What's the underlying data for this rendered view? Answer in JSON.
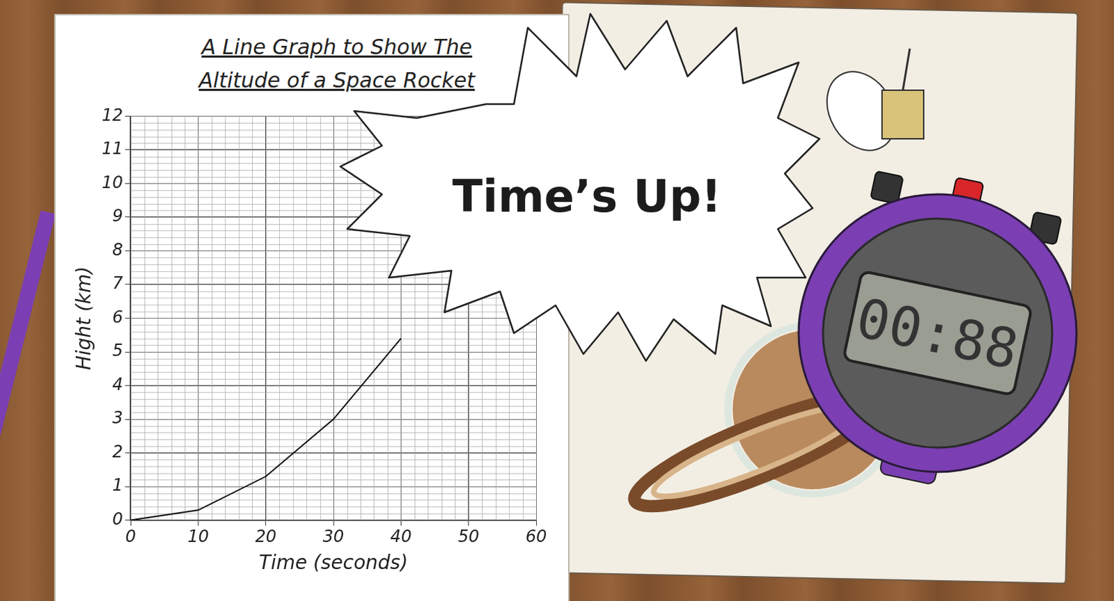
{
  "chart_data": {
    "type": "line",
    "title": "A Line Graph to Show The Altitude of a Space Rocket",
    "x_label": "Time (seconds)",
    "y_label": "Hight (km)",
    "x": [
      0,
      10,
      20,
      30,
      40
    ],
    "values": [
      0,
      0.3,
      1.3,
      3,
      5.4
    ],
    "color": "#111111",
    "line_style": "solid",
    "xlim": [
      0,
      60
    ],
    "xticks": [
      0,
      10,
      20,
      30,
      40,
      50,
      60
    ],
    "ylim": [
      0,
      12
    ],
    "yticks": [
      0,
      1,
      2,
      3,
      4,
      5,
      6,
      7,
      8,
      9,
      10,
      11,
      12
    ],
    "grid": true
  },
  "overlay": {
    "burst_text": "Time’s Up!",
    "stopwatch_display": "00:88"
  }
}
